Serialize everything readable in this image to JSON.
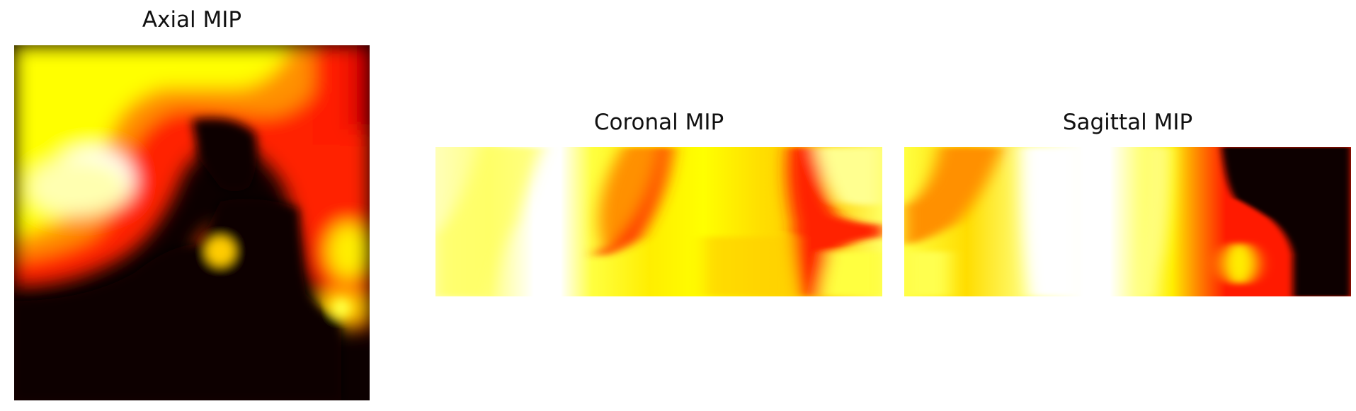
{
  "figure": {
    "panels": [
      {
        "id": "axial",
        "title": "Axial MIP",
        "colormap": "hot"
      },
      {
        "id": "coronal",
        "title": "Coronal MIP",
        "colormap": "hot"
      },
      {
        "id": "sagittal",
        "title": "Sagittal MIP",
        "colormap": "hot"
      }
    ]
  },
  "colors": {
    "black": "#0c0000",
    "dark_red": "#9b0000",
    "red": "#ff1a00",
    "orange": "#ff8a00",
    "yellow": "#ffff00",
    "pale_yellow": "#ffff9a",
    "white": "#ffffff"
  }
}
